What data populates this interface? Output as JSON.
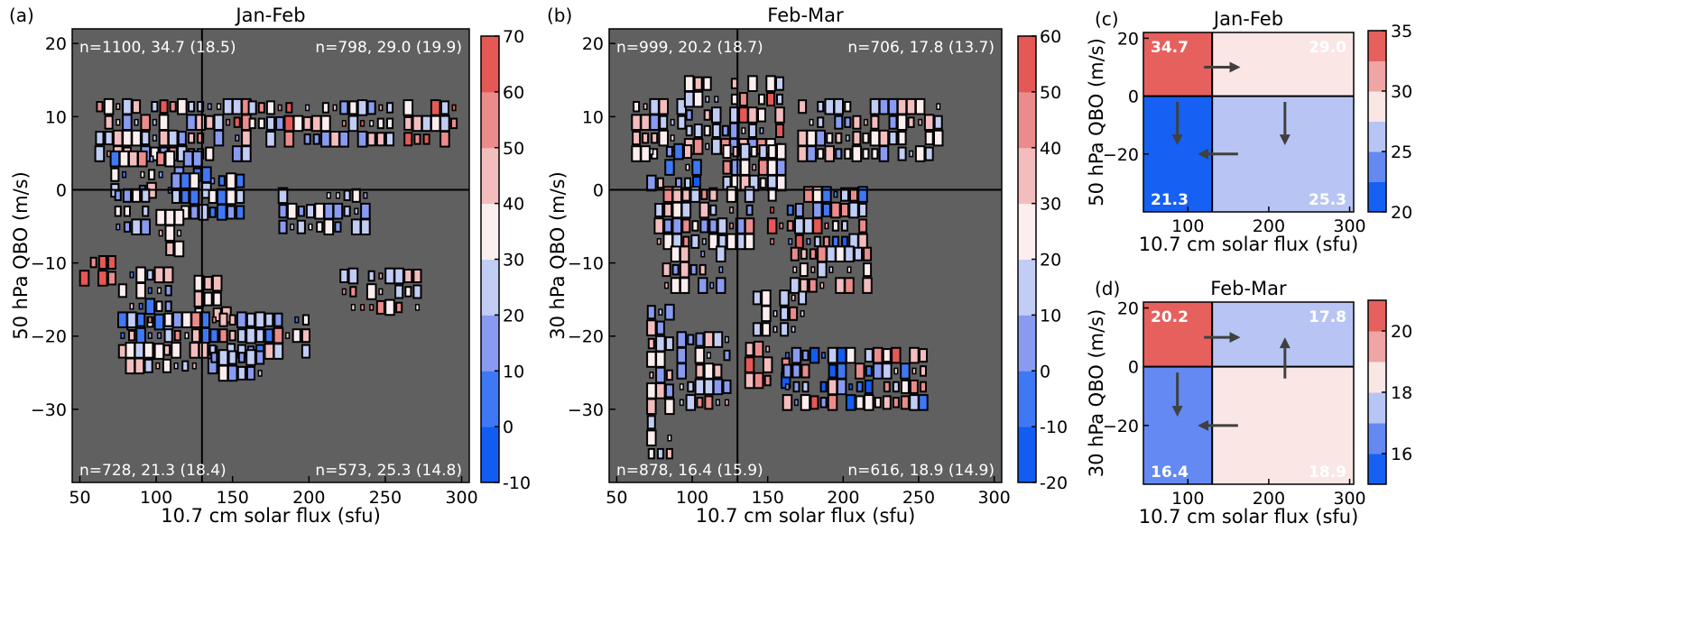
{
  "chart_data": [
    {
      "type": "heatmap",
      "panel_label": "(a)",
      "title": "Jan-Feb",
      "xlabel": "10.7 cm solar flux (sfu)",
      "ylabel": "50 hPa QBO (m/s)",
      "xlim": [
        45,
        305
      ],
      "ylim": [
        -40,
        22
      ],
      "xticks": [
        50,
        100,
        150,
        200,
        250,
        300
      ],
      "yticks": [
        20,
        10,
        0,
        -10,
        -20,
        -30
      ],
      "divider": {
        "x": 130,
        "y": 0
      },
      "colorbar": {
        "min": -10,
        "max": 70,
        "step": 10,
        "ticks": [
          70,
          60,
          50,
          40,
          30,
          20,
          10,
          0,
          -10
        ]
      },
      "annotations": {
        "top_left": "n=1100, 34.7 (18.5)",
        "top_right": "n=798, 29.0 (19.9)",
        "bottom_left": "n=728, 21.3 (18.4)",
        "bottom_right": "n=573, 25.3 (14.8)"
      },
      "clusters": [
        {
          "x": [
            60,
            160
          ],
          "y": [
            6,
            14
          ],
          "v": [
            15,
            62
          ]
        },
        {
          "x": [
            160,
            295
          ],
          "y": [
            8,
            14
          ],
          "v": [
            10,
            68
          ]
        },
        {
          "x": [
            70,
            130
          ],
          "y": [
            1,
            6
          ],
          "v": [
            0,
            58
          ]
        },
        {
          "x": [
            72,
            95
          ],
          "y": [
            -4,
            1
          ],
          "v": [
            15,
            35
          ]
        },
        {
          "x": [
            110,
            155
          ],
          "y": [
            -2,
            3
          ],
          "v": [
            0,
            45
          ]
        },
        {
          "x": [
            180,
            235
          ],
          "y": [
            -4,
            1
          ],
          "v": [
            15,
            40
          ]
        },
        {
          "x": [
            100,
            115
          ],
          "y": [
            -7,
            -2
          ],
          "v": [
            30,
            58
          ]
        },
        {
          "x": [
            50,
            70
          ],
          "y": [
            -11,
            -8
          ],
          "v": [
            50,
            68
          ]
        },
        {
          "x": [
            75,
            110
          ],
          "y": [
            -17,
            -9
          ],
          "v": [
            0,
            55
          ]
        },
        {
          "x": [
            125,
            145
          ],
          "y": [
            -16,
            -10
          ],
          "v": [
            30,
            45
          ]
        },
        {
          "x": [
            220,
            270
          ],
          "y": [
            -15,
            -9
          ],
          "v": [
            20,
            55
          ]
        },
        {
          "x": [
            75,
            200
          ],
          "y": [
            -21,
            -16
          ],
          "v": [
            0,
            58
          ]
        },
        {
          "x": [
            80,
            150
          ],
          "y": [
            -23,
            -20
          ],
          "v": [
            10,
            58
          ]
        },
        {
          "x": [
            135,
            165
          ],
          "y": [
            -24,
            -21
          ],
          "v": [
            10,
            35
          ]
        }
      ]
    },
    {
      "type": "heatmap",
      "panel_label": "(b)",
      "title": "Feb-Mar",
      "xlabel": "10.7 cm solar flux (sfu)",
      "ylabel": "30 hPa QBO (m/s)",
      "xlim": [
        45,
        305
      ],
      "ylim": [
        -40,
        22
      ],
      "xticks": [
        50,
        100,
        150,
        200,
        250,
        300
      ],
      "yticks": [
        20,
        10,
        0,
        -10,
        -20,
        -30
      ],
      "divider": {
        "x": 130,
        "y": 0
      },
      "colorbar": {
        "min": -20,
        "max": 60,
        "step": 10,
        "ticks": [
          60,
          50,
          40,
          30,
          20,
          10,
          0,
          -10,
          -20
        ]
      },
      "annotations": {
        "top_left": "n=999, 20.2 (18.7)",
        "top_right": "n=706, 17.8 (13.7)",
        "bottom_left": "n=878, 16.4 (15.9)",
        "bottom_right": "n=616, 18.9 (14.9)"
      },
      "clusters": [
        {
          "x": [
            60,
            90
          ],
          "y": [
            6,
            14
          ],
          "v": [
            5,
            40
          ]
        },
        {
          "x": [
            95,
            160
          ],
          "y": [
            7,
            17
          ],
          "v": [
            5,
            55
          ]
        },
        {
          "x": [
            170,
            260
          ],
          "y": [
            6,
            14
          ],
          "v": [
            5,
            40
          ]
        },
        {
          "x": [
            70,
            105
          ],
          "y": [
            2,
            8
          ],
          "v": [
            -15,
            40
          ]
        },
        {
          "x": [
            120,
            160
          ],
          "y": [
            2,
            8
          ],
          "v": [
            5,
            45
          ]
        },
        {
          "x": [
            75,
            140
          ],
          "y": [
            -6,
            2
          ],
          "v": [
            5,
            45
          ]
        },
        {
          "x": [
            150,
            215
          ],
          "y": [
            -6,
            1
          ],
          "v": [
            -15,
            55
          ]
        },
        {
          "x": [
            80,
            120
          ],
          "y": [
            -12,
            -6
          ],
          "v": [
            0,
            40
          ]
        },
        {
          "x": [
            165,
            215
          ],
          "y": [
            -12,
            -6
          ],
          "v": [
            10,
            50
          ]
        },
        {
          "x": [
            140,
            175
          ],
          "y": [
            -18,
            -13
          ],
          "v": [
            10,
            45
          ]
        },
        {
          "x": [
            70,
            85
          ],
          "y": [
            -35,
            -15
          ],
          "v": [
            5,
            40
          ]
        },
        {
          "x": [
            90,
            120
          ],
          "y": [
            -28,
            -18
          ],
          "v": [
            0,
            45
          ]
        },
        {
          "x": [
            135,
            160
          ],
          "y": [
            -25,
            -20
          ],
          "v": [
            -15,
            55
          ]
        },
        {
          "x": [
            160,
            250
          ],
          "y": [
            -28,
            -20
          ],
          "v": [
            -15,
            55
          ]
        }
      ]
    },
    {
      "type": "heatmap",
      "panel_label": "(c)",
      "title": "Jan-Feb",
      "xlabel": "10.7 cm solar flux (sfu)",
      "ylabel": "50 hPa QBO (m/s)",
      "xlim": [
        45,
        305
      ],
      "ylim": [
        -40,
        22
      ],
      "xticks": [
        100,
        200,
        300
      ],
      "yticks": [
        20,
        0,
        -20
      ],
      "divider": {
        "x": 130,
        "y": 0
      },
      "colorbar": {
        "min": 20,
        "max": 35,
        "step": 2.5,
        "ticks": [
          35,
          30,
          25,
          20
        ]
      },
      "quadrants": [
        {
          "label": "34.7",
          "value": 34.7,
          "pos": "top_left"
        },
        {
          "label": "29.0",
          "value": 29.0,
          "pos": "top_right"
        },
        {
          "label": "21.3",
          "value": 21.3,
          "pos": "bottom_left"
        },
        {
          "label": "25.3",
          "value": 25.3,
          "pos": "bottom_right"
        }
      ],
      "arrows": [
        {
          "from": [
            120,
            10
          ],
          "to": [
            165,
            10
          ]
        },
        {
          "from": [
            87,
            -2
          ],
          "to": [
            87,
            -17
          ]
        },
        {
          "from": [
            220,
            -2
          ],
          "to": [
            220,
            -17
          ]
        },
        {
          "from": [
            162,
            -20
          ],
          "to": [
            112,
            -20
          ]
        }
      ]
    },
    {
      "type": "heatmap",
      "panel_label": "(d)",
      "title": "Feb-Mar",
      "xlabel": "10.7 cm solar flux (sfu)",
      "ylabel": "30 hPa QBO (m/s)",
      "xlim": [
        45,
        305
      ],
      "ylim": [
        -40,
        22
      ],
      "xticks": [
        100,
        200,
        300
      ],
      "yticks": [
        20,
        0,
        -20
      ],
      "divider": {
        "x": 130,
        "y": 0
      },
      "colorbar": {
        "min": 15,
        "max": 21,
        "step": 1,
        "ticks": [
          20,
          18,
          16
        ]
      },
      "quadrants": [
        {
          "label": "20.2",
          "value": 20.2,
          "pos": "top_left"
        },
        {
          "label": "17.8",
          "value": 17.8,
          "pos": "top_right"
        },
        {
          "label": "16.4",
          "value": 16.4,
          "pos": "bottom_left"
        },
        {
          "label": "18.9",
          "value": 18.9,
          "pos": "bottom_right"
        }
      ],
      "arrows": [
        {
          "from": [
            120,
            10
          ],
          "to": [
            165,
            10
          ]
        },
        {
          "from": [
            87,
            -2
          ],
          "to": [
            87,
            -17
          ]
        },
        {
          "from": [
            220,
            -4
          ],
          "to": [
            220,
            10
          ]
        },
        {
          "from": [
            162,
            -20
          ],
          "to": [
            112,
            -20
          ]
        }
      ]
    }
  ]
}
